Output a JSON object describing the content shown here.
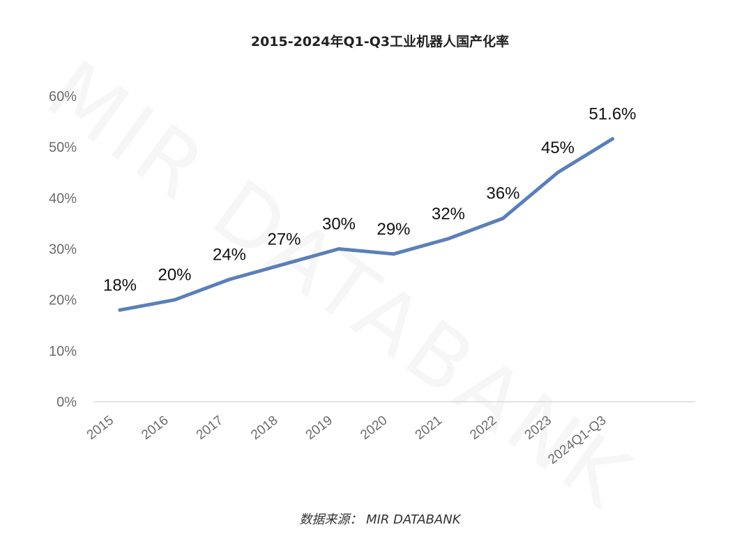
{
  "chart_data": {
    "type": "line",
    "title": "2015-2024年Q1-Q3工业机器人国产化率",
    "categories": [
      "2015",
      "2016",
      "2017",
      "2018",
      "2019",
      "2020",
      "2021",
      "2022",
      "2023",
      "2024Q1-Q3"
    ],
    "series": [
      {
        "values": [
          18,
          20,
          24,
          27,
          30,
          29,
          32,
          36,
          45,
          51.6
        ],
        "data_labels": [
          "18%",
          "20%",
          "24%",
          "27%",
          "30%",
          "29%",
          "32%",
          "36%",
          "45%",
          "51.6%"
        ]
      }
    ],
    "y_ticks": [
      "0%",
      "10%",
      "20%",
      "30%",
      "40%",
      "50%",
      "60%"
    ],
    "ylim": [
      0,
      60
    ],
    "grid": false,
    "legend": "none",
    "line_color": "#5b7fb8"
  },
  "source": "数据来源： MIR DATABANK",
  "watermark": "MIR DATABANK"
}
